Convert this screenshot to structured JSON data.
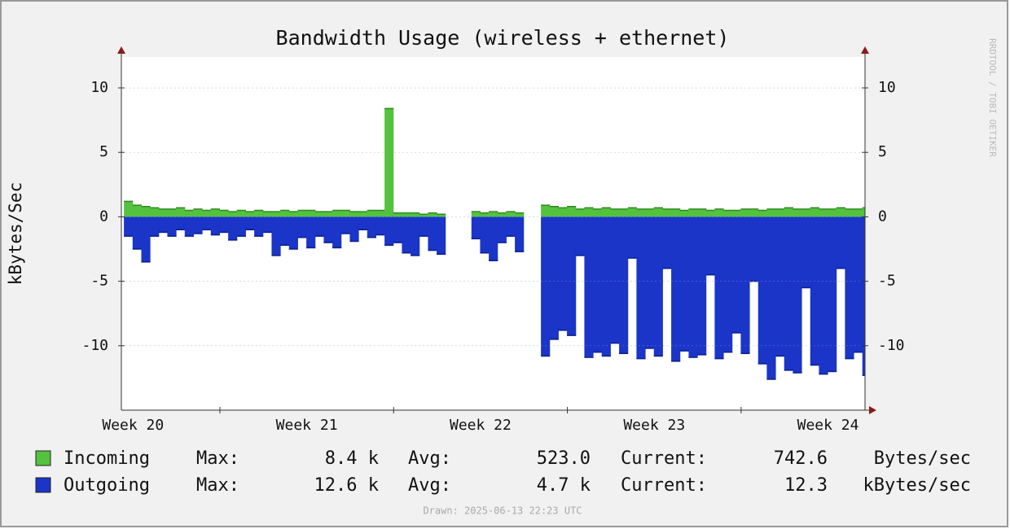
{
  "chart_data": {
    "type": "bar",
    "title": "Bandwidth Usage (wireless + ethernet)",
    "y_label": "kBytes/Sec",
    "side_label": "RRDTOOL / TOBI OETIKER",
    "footer": "Drawn: 2025-06-13 22:23 UTC",
    "xlim": [
      0.433,
      4.713
    ],
    "xticks": [
      {
        "value": 0.5,
        "label": "Week 20"
      },
      {
        "value": 1.5,
        "label": "Week 21"
      },
      {
        "value": 2.5,
        "label": "Week 22"
      },
      {
        "value": 3.5,
        "label": "Week 23"
      },
      {
        "value": 4.5,
        "label": "Week 24"
      }
    ],
    "xgrid": [
      1,
      2,
      3,
      4
    ],
    "ylim": [
      -15,
      12.4
    ],
    "yticks": [
      -10,
      -5,
      0,
      5,
      10
    ],
    "grid": true,
    "x": [
      0.45,
      0.5,
      0.55,
      0.6,
      0.65,
      0.7,
      0.75,
      0.8,
      0.85,
      0.9,
      0.95,
      1.0,
      1.05,
      1.1,
      1.15,
      1.2,
      1.25,
      1.3,
      1.35,
      1.4,
      1.45,
      1.5,
      1.55,
      1.6,
      1.65,
      1.7,
      1.75,
      1.8,
      1.85,
      1.9,
      1.95,
      2.0,
      2.05,
      2.1,
      2.15,
      2.2,
      2.25,
      2.3,
      2.35,
      2.4,
      2.45,
      2.5,
      2.55,
      2.6,
      2.65,
      2.7,
      2.75,
      2.8,
      2.85,
      2.9,
      2.95,
      3.0,
      3.05,
      3.1,
      3.15,
      3.2,
      3.25,
      3.3,
      3.35,
      3.4,
      3.45,
      3.5,
      3.55,
      3.6,
      3.65,
      3.7,
      3.75,
      3.8,
      3.85,
      3.9,
      3.95,
      4.0,
      4.05,
      4.1,
      4.15,
      4.2,
      4.25,
      4.3,
      4.35,
      4.4,
      4.45,
      4.5,
      4.55,
      4.6,
      4.65,
      4.7
    ],
    "series": [
      {
        "name": "Incoming",
        "color": "#54c23f",
        "edge": "#2e8a1e",
        "values": [
          1.2,
          0.9,
          0.8,
          0.7,
          0.6,
          0.6,
          0.7,
          0.5,
          0.6,
          0.5,
          0.6,
          0.5,
          0.4,
          0.5,
          0.4,
          0.5,
          0.4,
          0.4,
          0.5,
          0.4,
          0.5,
          0.5,
          0.4,
          0.4,
          0.5,
          0.5,
          0.4,
          0.4,
          0.5,
          0.5,
          8.4,
          0.3,
          0.3,
          0.3,
          0.2,
          0.3,
          0.2,
          null,
          null,
          null,
          0.4,
          0.3,
          0.4,
          0.3,
          0.4,
          0.3,
          null,
          null,
          0.9,
          0.8,
          0.7,
          0.8,
          0.6,
          0.7,
          0.6,
          0.7,
          0.6,
          0.6,
          0.7,
          0.6,
          0.6,
          0.7,
          0.6,
          0.6,
          0.5,
          0.6,
          0.6,
          0.5,
          0.6,
          0.5,
          0.5,
          0.6,
          0.6,
          0.5,
          0.6,
          0.6,
          0.7,
          0.6,
          0.6,
          0.7,
          0.6,
          0.6,
          0.7,
          0.6,
          0.6,
          0.7
        ],
        "stats": [
          "Max:",
          "8.4 k",
          "Avg:",
          "523.0",
          "Current:",
          "742.6",
          "Bytes/sec"
        ]
      },
      {
        "name": "Outgoing",
        "color": "#1a35c8",
        "edge": "#0c1f8a",
        "values": [
          -1.5,
          -2.5,
          -3.5,
          -1.5,
          -1.2,
          -1.5,
          -1.0,
          -1.5,
          -1.3,
          -1.0,
          -1.4,
          -1.2,
          -1.8,
          -1.5,
          -1.0,
          -1.5,
          -1.2,
          -3.0,
          -2.2,
          -2.5,
          -1.6,
          -2.4,
          -1.5,
          -2.0,
          -2.4,
          -1.3,
          -1.9,
          -1.0,
          -1.6,
          -1.4,
          -2.2,
          -2.0,
          -2.8,
          -3.0,
          -1.5,
          -2.6,
          -2.9,
          null,
          null,
          null,
          -1.7,
          -2.8,
          -3.4,
          -2.0,
          -1.5,
          -2.7,
          null,
          null,
          -10.8,
          -9.5,
          -8.8,
          -9.2,
          -3.0,
          -10.9,
          -10.5,
          -10.8,
          -9.8,
          -10.6,
          -3.2,
          -11.0,
          -10.2,
          -10.8,
          -4.0,
          -11.2,
          -10.4,
          -10.9,
          -10.7,
          -4.5,
          -11.0,
          -10.5,
          -9.0,
          -10.6,
          -5.0,
          -11.4,
          -12.6,
          -10.8,
          -11.9,
          -12.1,
          -5.5,
          -11.5,
          -12.2,
          -12.0,
          -4.0,
          -11.0,
          -10.5,
          -12.3
        ],
        "stats": [
          "Max:",
          "12.6 k",
          "Avg:",
          "4.7 k",
          "Current:",
          "12.3",
          "kBytes/sec"
        ]
      }
    ]
  }
}
